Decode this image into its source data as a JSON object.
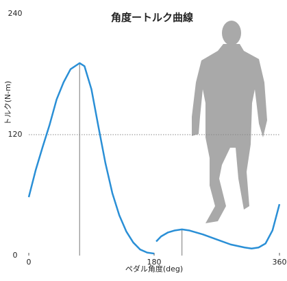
{
  "chart_data": {
    "type": "line",
    "title": "角度ートルク曲線",
    "x_label": "ペダル角度(deg)",
    "y_label": "トルク(N-m)",
    "x": [
      0,
      10,
      20,
      30,
      40,
      50,
      60,
      73,
      80,
      90,
      100,
      110,
      120,
      130,
      140,
      150,
      160,
      170,
      180,
      181,
      183,
      190,
      200,
      210,
      220,
      230,
      250,
      270,
      290,
      310,
      320,
      330,
      340,
      350,
      355,
      360
    ],
    "series": [
      {
        "name": "トルク",
        "color": "#2a8fd6",
        "values": [
          58,
          85,
          108,
          130,
          155,
          172,
          185,
          191,
          188,
          165,
          128,
          92,
          62,
          40,
          24,
          13,
          6,
          3,
          2,
          null,
          14,
          19,
          23,
          25,
          26,
          25,
          21,
          16,
          11,
          8,
          7,
          8,
          12,
          25,
          38,
          51
        ]
      }
    ],
    "xlim": [
      0,
      360
    ],
    "xticks": [
      0,
      180,
      360
    ],
    "ylim": [
      0,
      240
    ],
    "yticks": [
      0,
      120,
      240
    ],
    "hlines": [
      120
    ],
    "vlines": [
      {
        "x": 73,
        "y": 191
      },
      {
        "x": 220,
        "y": 26
      }
    ]
  }
}
